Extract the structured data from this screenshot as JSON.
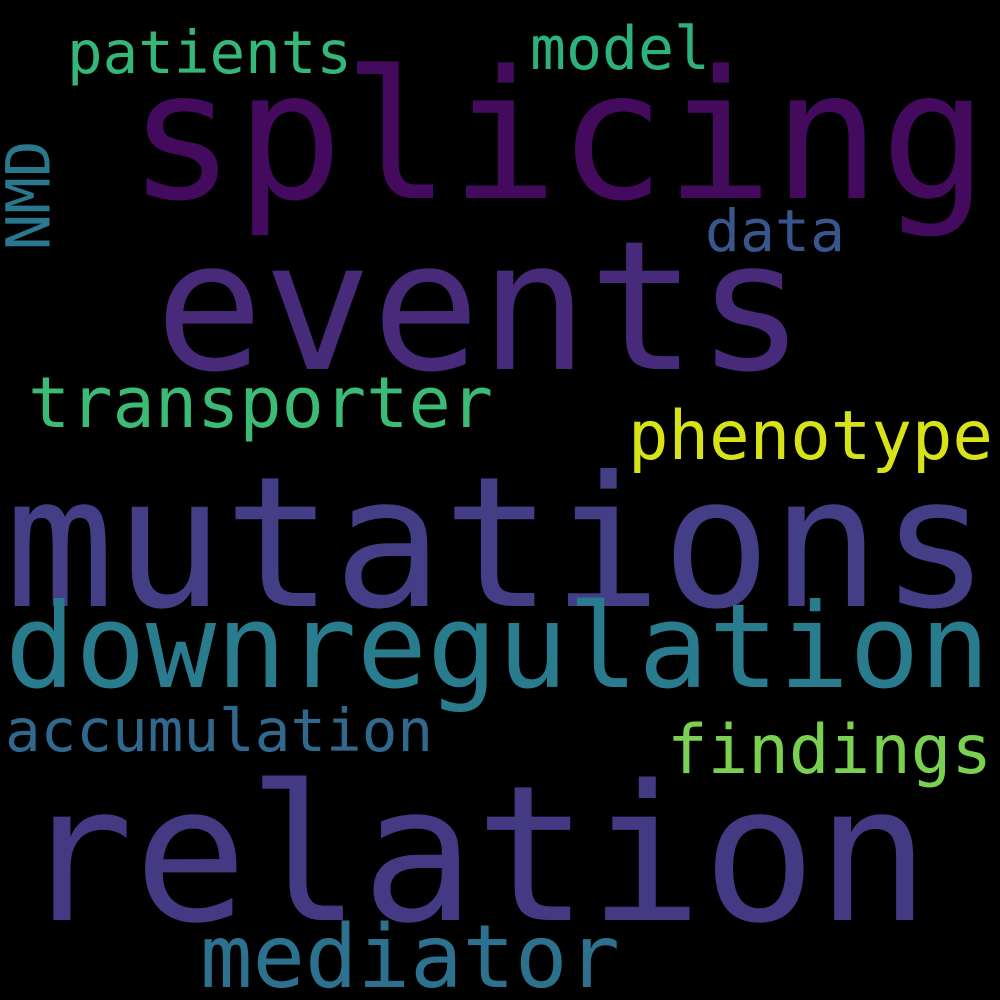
{
  "background": "#000000",
  "words": [
    {
      "text": "splicing",
      "color": "#440a5e"
    },
    {
      "text": "events",
      "color": "#472a7a"
    },
    {
      "text": "mutations",
      "color": "#433e85"
    },
    {
      "text": "relation",
      "color": "#443983"
    },
    {
      "text": "downregulation",
      "color": "#287c8e"
    },
    {
      "text": "mediator",
      "color": "#2c718e"
    },
    {
      "text": "transporter",
      "color": "#3bbb75"
    },
    {
      "text": "phenotype",
      "color": "#d8e219"
    },
    {
      "text": "findings",
      "color": "#7ad151"
    },
    {
      "text": "accumulation",
      "color": "#31688e"
    },
    {
      "text": "patients",
      "color": "#35b779"
    },
    {
      "text": "model",
      "color": "#2db27d"
    },
    {
      "text": "data",
      "color": "#39568c"
    },
    {
      "text": "NMD",
      "color": "#2a788e"
    }
  ]
}
